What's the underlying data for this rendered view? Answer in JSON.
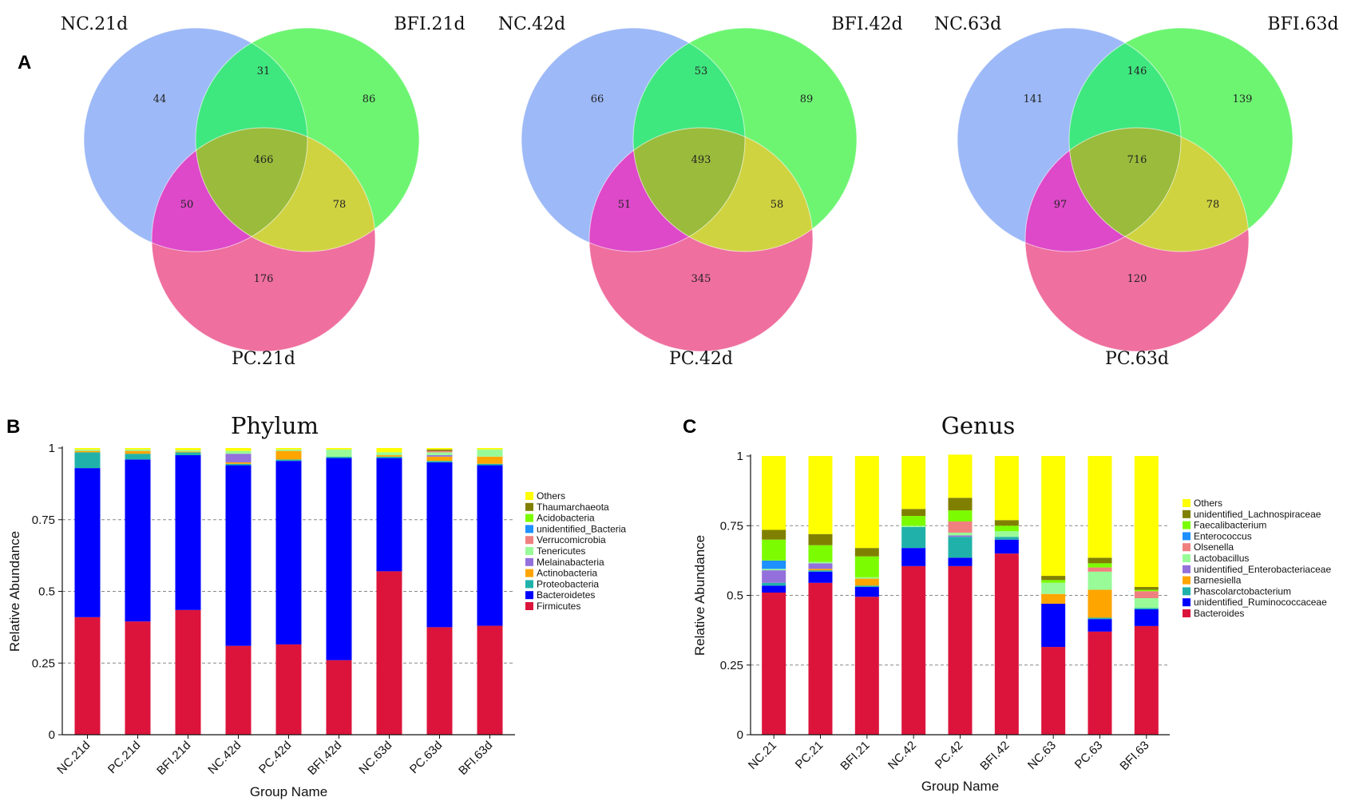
{
  "panel_labels": {
    "a": "A",
    "b": "B",
    "c": "C"
  },
  "colors": {
    "nc_circle": "#9db9f7",
    "bfi_circle": "#6df572",
    "pc_circle": "#ef6f9f",
    "nc_bfi": "#3fe77f",
    "nc_pc": "#dd49c8",
    "bfi_pc": "#cfd340",
    "all": "#9abb3c"
  },
  "venns": [
    {
      "labels": {
        "nc": "NC.21d",
        "bfi": "BFI.21d",
        "pc": "PC.21d"
      },
      "counts": {
        "nc_only": "44",
        "nc_bfi": "31",
        "bfi_only": "86",
        "all": "466",
        "nc_pc": "50",
        "bfi_pc": "78",
        "pc_only": "176"
      }
    },
    {
      "labels": {
        "nc": "NC.42d",
        "bfi": "BFI.42d",
        "pc": "PC.42d"
      },
      "counts": {
        "nc_only": "66",
        "nc_bfi": "53",
        "bfi_only": "89",
        "all": "493",
        "nc_pc": "51",
        "bfi_pc": "58",
        "pc_only": "345"
      }
    },
    {
      "labels": {
        "nc": "NC.63d",
        "bfi": "BFI.63d",
        "pc": "PC.63d"
      },
      "counts": {
        "nc_only": "141",
        "nc_bfi": "146",
        "bfi_only": "139",
        "all": "716",
        "nc_pc": "97",
        "bfi_pc": "78",
        "pc_only": "120"
      }
    }
  ],
  "chart_data": [
    {
      "type": "bar",
      "stacked": true,
      "title": "Phylum",
      "xlabel": "Group Name",
      "ylabel": "Relative Abundance",
      "ylim": [
        0,
        1
      ],
      "yticks": [
        "0",
        "0.25",
        "0.5",
        "0.75",
        "1"
      ],
      "categories": [
        "NC.21d",
        "PC.21d",
        "BFI.21d",
        "NC.42d",
        "PC.42d",
        "BFI.42d",
        "NC.63d",
        "PC.63d",
        "BFI.63d"
      ],
      "series": [
        {
          "name": "Firmicutes",
          "color": "#dc143c",
          "values": [
            0.41,
            0.395,
            0.435,
            0.31,
            0.315,
            0.26,
            0.57,
            0.375,
            0.38
          ]
        },
        {
          "name": "Bacteroidetes",
          "color": "#0000ff",
          "values": [
            0.52,
            0.565,
            0.54,
            0.63,
            0.64,
            0.705,
            0.395,
            0.575,
            0.56
          ]
        },
        {
          "name": "Proteobacteria",
          "color": "#20b2aa",
          "values": [
            0.055,
            0.02,
            0.01,
            0.005,
            0.005,
            0.005,
            0.005,
            0.005,
            0.005
          ]
        },
        {
          "name": "Actinobacteria",
          "color": "#ffa500",
          "values": [
            0.005,
            0.01,
            0.003,
            0.005,
            0.03,
            0.0,
            0.005,
            0.015,
            0.025
          ]
        },
        {
          "name": "Melainabacteria",
          "color": "#9370db",
          "values": [
            0.0,
            0.0,
            0.0,
            0.03,
            0.0,
            0.0,
            0.0,
            0.005,
            0.0
          ]
        },
        {
          "name": "Tenericutes",
          "color": "#98fb98",
          "values": [
            0.005,
            0.005,
            0.005,
            0.01,
            0.005,
            0.025,
            0.01,
            0.01,
            0.025
          ]
        },
        {
          "name": "Verrucomicrobia",
          "color": "#f08080",
          "values": [
            0.0,
            0.0,
            0.0,
            0.0,
            0.0,
            0.0,
            0.0,
            0.005,
            0.0
          ]
        },
        {
          "name": "unidentified_Bacteria",
          "color": "#1e90ff",
          "values": [
            0.0,
            0.0,
            0.0,
            0.0,
            0.0,
            0.0,
            0.0,
            0.0,
            0.0
          ]
        },
        {
          "name": "Acidobacteria",
          "color": "#7cfc00",
          "values": [
            0.0,
            0.0,
            0.0,
            0.0,
            0.0,
            0.0,
            0.0,
            0.0,
            0.0
          ]
        },
        {
          "name": "Thaumarchaeota",
          "color": "#808000",
          "values": [
            0.0,
            0.0,
            0.0,
            0.0,
            0.0,
            0.0,
            0.0,
            0.005,
            0.0
          ]
        },
        {
          "name": "Others",
          "color": "#ffff00",
          "values": [
            0.005,
            0.005,
            0.007,
            0.01,
            0.005,
            0.005,
            0.015,
            0.005,
            0.005
          ]
        }
      ]
    },
    {
      "type": "bar",
      "stacked": true,
      "title": "Genus",
      "xlabel": "Group Name",
      "ylabel": "Relative Abundance",
      "ylim": [
        0,
        1
      ],
      "yticks": [
        "0",
        "0.25",
        "0.5",
        "0.75",
        "1"
      ],
      "categories": [
        "NC.21",
        "PC.21",
        "BFI.21",
        "NC.42",
        "PC.42",
        "BFI.42",
        "NC.63",
        "PC.63",
        "BFI.63"
      ],
      "series": [
        {
          "name": "Bacteroides",
          "color": "#dc143c",
          "values": [
            0.51,
            0.545,
            0.495,
            0.605,
            0.605,
            0.65,
            0.315,
            0.37,
            0.39
          ]
        },
        {
          "name": "unidentified_Ruminococcaceae",
          "color": "#0000ff",
          "values": [
            0.025,
            0.04,
            0.035,
            0.065,
            0.03,
            0.05,
            0.155,
            0.045,
            0.06
          ]
        },
        {
          "name": "Phascolarctobacterium",
          "color": "#20b2aa",
          "values": [
            0.01,
            0.005,
            0.005,
            0.075,
            0.075,
            0.01,
            0.0,
            0.005,
            0.005
          ]
        },
        {
          "name": "Barnesiella",
          "color": "#ffa500",
          "values": [
            0.0,
            0.005,
            0.025,
            0.0,
            0.0,
            0.0,
            0.035,
            0.1,
            0.0
          ]
        },
        {
          "name": "unidentified_Enterobacteriaceae",
          "color": "#9370db",
          "values": [
            0.045,
            0.02,
            0.0,
            0.0,
            0.005,
            0.0,
            0.0,
            0.0,
            0.0
          ]
        },
        {
          "name": "Lactobacillus",
          "color": "#98fb98",
          "values": [
            0.005,
            0.005,
            0.005,
            0.005,
            0.01,
            0.02,
            0.04,
            0.065,
            0.035
          ]
        },
        {
          "name": "Olsenella",
          "color": "#f08080",
          "values": [
            0.0,
            0.0,
            0.0,
            0.0,
            0.04,
            0.0,
            0.0,
            0.015,
            0.025
          ]
        },
        {
          "name": "Enterococcus",
          "color": "#1e90ff",
          "values": [
            0.03,
            0.0,
            0.0,
            0.0,
            0.0,
            0.0,
            0.0,
            0.0,
            0.0
          ]
        },
        {
          "name": "Faecalibacterium",
          "color": "#7cfc00",
          "values": [
            0.075,
            0.06,
            0.075,
            0.035,
            0.04,
            0.02,
            0.01,
            0.015,
            0.005
          ]
        },
        {
          "name": "unidentified_Lachnospiraceae",
          "color": "#808000",
          "values": [
            0.035,
            0.04,
            0.03,
            0.025,
            0.045,
            0.02,
            0.015,
            0.02,
            0.01
          ]
        },
        {
          "name": "Others",
          "color": "#ffff00",
          "values": [
            0.265,
            0.28,
            0.33,
            0.19,
            0.155,
            0.23,
            0.43,
            0.365,
            0.47
          ]
        }
      ]
    }
  ]
}
